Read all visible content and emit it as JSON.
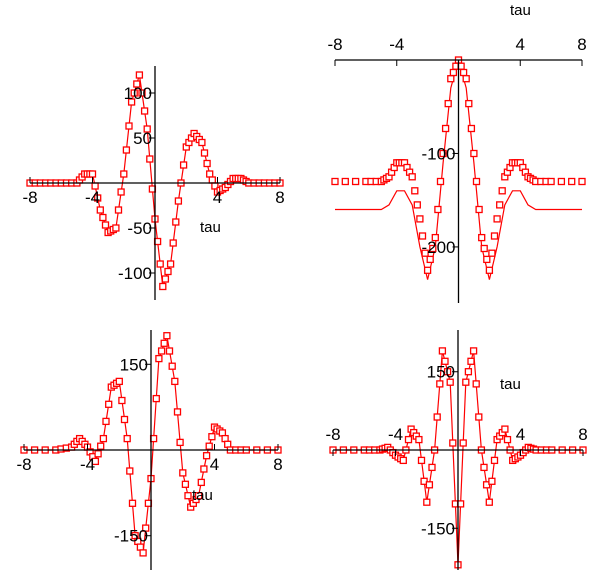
{
  "chart_data": [
    {
      "type": "line",
      "panel": "top-left",
      "xlabel": "tau",
      "xticks": [
        -8,
        -4,
        4,
        8
      ],
      "yticks": [
        100,
        50,
        -50,
        -100
      ],
      "xlim": [
        -8,
        8
      ],
      "ylim": [
        -130,
        130
      ],
      "series": [
        {
          "style": "line",
          "x": [
            -8,
            -7,
            -6,
            -5,
            -4.5,
            -4,
            -3.5,
            -3,
            -2.5,
            -2,
            -1.5,
            -1,
            -0.5,
            0,
            0.5,
            1,
            1.5,
            2,
            2.5,
            3,
            3.5,
            4,
            4.5,
            5,
            5.5,
            6,
            7,
            8
          ],
          "y": [
            0,
            0,
            0,
            0,
            10,
            10,
            -30,
            -55,
            -50,
            10,
            90,
            120,
            60,
            -40,
            -115,
            -90,
            -20,
            40,
            55,
            45,
            10,
            -10,
            -5,
            5,
            5,
            0,
            0,
            0
          ]
        },
        {
          "style": "markers",
          "x": [
            -8,
            -7,
            -6,
            -5,
            -4.5,
            -4,
            -3.5,
            -3,
            -2.5,
            -2,
            -1.5,
            -1,
            -0.5,
            0,
            0.5,
            1,
            1.5,
            2,
            2.5,
            3,
            3.5,
            4,
            4.5,
            5,
            5.5,
            6,
            7,
            8
          ],
          "y": [
            0,
            0,
            0,
            0,
            10,
            10,
            -30,
            -55,
            -50,
            10,
            90,
            120,
            60,
            -40,
            -115,
            -90,
            -20,
            40,
            55,
            45,
            10,
            -10,
            -5,
            5,
            5,
            0,
            0,
            0
          ]
        }
      ]
    },
    {
      "type": "line",
      "panel": "top-right",
      "xlabel": "tau",
      "xticks": [
        -8,
        -4,
        4,
        8
      ],
      "yticks": [
        -100,
        -200
      ],
      "xlim": [
        -8,
        8
      ],
      "ylim": [
        -260,
        0
      ],
      "series": [
        {
          "style": "line",
          "x": [
            -8,
            -6,
            -5,
            -4.5,
            -4,
            -3.5,
            -3,
            -2.5,
            -2,
            -1.5,
            -1,
            -0.5,
            0,
            0.5,
            1,
            1.5,
            2,
            2.5,
            3,
            3.5,
            4,
            4.5,
            5,
            6,
            8
          ],
          "y": [
            -160,
            -160,
            -160,
            -155,
            -140,
            -140,
            -155,
            -200,
            -235,
            -200,
            -110,
            -30,
            0,
            -30,
            -110,
            -200,
            -235,
            -200,
            -155,
            -140,
            -140,
            -155,
            -160,
            -160,
            -160
          ]
        },
        {
          "style": "markers",
          "x": [
            -8,
            -6,
            -5,
            -4.5,
            -4,
            -3.5,
            -3,
            -2.5,
            -2,
            -1.5,
            -1,
            -0.5,
            0,
            0.5,
            1,
            1.5,
            2,
            2.5,
            3,
            3.5,
            4,
            4.5,
            5,
            6,
            8
          ],
          "y": [
            -130,
            -130,
            -130,
            -125,
            -110,
            -110,
            -125,
            -170,
            -225,
            -190,
            -100,
            -20,
            0,
            -20,
            -100,
            -190,
            -225,
            -170,
            -125,
            -110,
            -110,
            -125,
            -130,
            -130,
            -130
          ]
        }
      ]
    },
    {
      "type": "line",
      "panel": "bottom-left",
      "xlabel": "tau",
      "xticks": [
        -8,
        -4,
        4,
        8
      ],
      "yticks": [
        150,
        -150
      ],
      "xlim": [
        -8,
        8
      ],
      "ylim": [
        -210,
        210
      ],
      "series": [
        {
          "style": "line",
          "x": [
            -8,
            -6,
            -5,
            -4.5,
            -4,
            -3.5,
            -3,
            -2.5,
            -2,
            -1.5,
            -1,
            -0.5,
            0,
            0.5,
            1,
            1.5,
            2,
            2.5,
            3,
            3.5,
            4,
            4.5,
            5,
            6,
            8
          ],
          "y": [
            0,
            0,
            5,
            20,
            5,
            -20,
            20,
            110,
            120,
            20,
            -150,
            -180,
            -50,
            160,
            200,
            120,
            -40,
            -100,
            -80,
            -10,
            40,
            30,
            0,
            0,
            0
          ]
        },
        {
          "style": "markers",
          "x": [
            -8,
            -6,
            -5,
            -4.5,
            -4,
            -3.5,
            -3,
            -2.5,
            -2,
            -1.5,
            -1,
            -0.5,
            0,
            0.5,
            1,
            1.5,
            2,
            2.5,
            3,
            3.5,
            4,
            4.5,
            5,
            6,
            8
          ],
          "y": [
            0,
            0,
            5,
            20,
            5,
            -20,
            20,
            110,
            120,
            20,
            -150,
            -180,
            -50,
            160,
            200,
            120,
            -40,
            -100,
            -80,
            -10,
            40,
            30,
            0,
            0,
            0
          ]
        }
      ]
    },
    {
      "type": "line",
      "panel": "bottom-right",
      "xlabel": "tau",
      "xticks": [
        -8,
        -4,
        4,
        8
      ],
      "yticks": [
        150,
        -150
      ],
      "xlim": [
        -8,
        8
      ],
      "ylim": [
        -230,
        230
      ],
      "series": [
        {
          "style": "line",
          "x": [
            -8,
            -6,
            -5,
            -4.5,
            -4,
            -3.5,
            -3,
            -2.5,
            -2,
            -1.5,
            -1,
            -0.5,
            0,
            0.5,
            1,
            1.5,
            2,
            2.5,
            3,
            3.5,
            4,
            4.5,
            5,
            6,
            8
          ],
          "y": [
            0,
            0,
            0,
            5,
            -10,
            -20,
            40,
            20,
            -100,
            0,
            190,
            130,
            -220,
            130,
            190,
            0,
            -100,
            20,
            40,
            -20,
            -10,
            5,
            0,
            0,
            0
          ]
        },
        {
          "style": "markers",
          "x": [
            -8,
            -6,
            -5,
            -4.5,
            -4,
            -3.5,
            -3,
            -2.5,
            -2,
            -1.5,
            -1,
            -0.5,
            0,
            0.5,
            1,
            1.5,
            2,
            2.5,
            3,
            3.5,
            4,
            4.5,
            5,
            6,
            8
          ],
          "y": [
            0,
            0,
            0,
            5,
            -10,
            -20,
            40,
            20,
            -100,
            0,
            190,
            130,
            -220,
            130,
            190,
            0,
            -100,
            20,
            40,
            -20,
            -10,
            5,
            0,
            0,
            0
          ]
        }
      ]
    }
  ]
}
